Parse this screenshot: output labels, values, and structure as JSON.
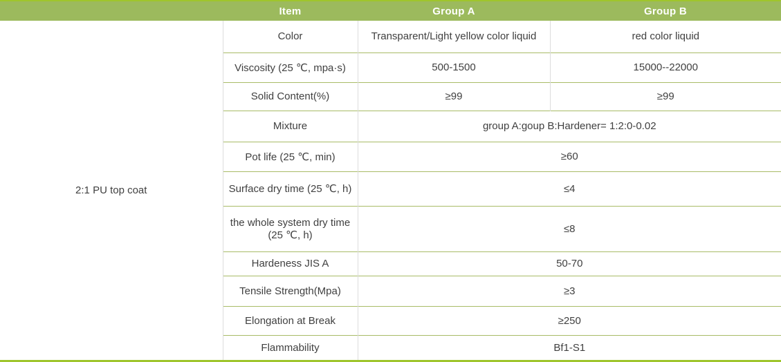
{
  "table": {
    "product": "2:1 PU top coat",
    "header": {
      "item": "Item",
      "group_a": "Group A",
      "group_b": "Group B"
    },
    "rows": [
      {
        "item": "Color",
        "a": "Transparent/Light yellow color liquid",
        "b": "red color liquid"
      },
      {
        "item": "Viscosity (25 ℃, mpa·s)",
        "a": "500-1500",
        "b": "15000--22000"
      },
      {
        "item": "Solid Content(%)",
        "a": "≥99",
        "b": "≥99"
      },
      {
        "item": "Mixture",
        "span": "group A:goup B:Hardener= 1:2:0-0.02"
      },
      {
        "item": "Pot life (25 ℃, min)",
        "span": "≥60"
      },
      {
        "item": "Surface dry time (25 ℃, h)",
        "span": "≤4"
      },
      {
        "item": "the whole system dry time (25 ℃, h)",
        "span": "≤8"
      },
      {
        "item": "Hardeness JIS A",
        "span": "50-70"
      },
      {
        "item": "Tensile Strength(Mpa)",
        "span": "≥3"
      },
      {
        "item": "Elongation at Break",
        "span": "≥250"
      },
      {
        "item": "Flammability",
        "span": "Bf1-S1"
      }
    ],
    "colors": {
      "header_bg": "#9cba5d",
      "accent_line": "#9fc52c",
      "row_border": "#a8bb66",
      "column_border": "#dcdcdc",
      "header_text": "#ffffff",
      "body_text": "#404040"
    }
  }
}
